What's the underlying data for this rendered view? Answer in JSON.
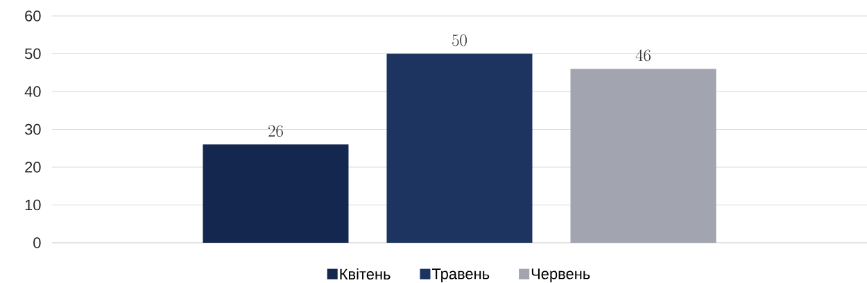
{
  "chart_data": {
    "type": "bar",
    "categories": [
      null
    ],
    "series": [
      {
        "name": "Квітень",
        "color": "#14274e",
        "values": [
          26
        ]
      },
      {
        "name": "Травень",
        "color": "#1d3461",
        "values": [
          50
        ]
      },
      {
        "name": "Червень",
        "color": "#a2a4af",
        "values": [
          46
        ]
      }
    ],
    "ylim": [
      0,
      60
    ],
    "yticks": [
      0,
      10,
      20,
      30,
      40,
      50,
      60
    ],
    "grid": "y",
    "legend": "bottom",
    "data_labels": true
  }
}
